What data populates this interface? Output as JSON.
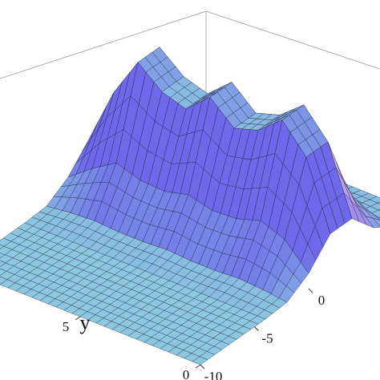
{
  "chart_data": {
    "type": "surface3d",
    "ylabel": "y",
    "x": [
      -10,
      -8,
      -6,
      -4,
      -2,
      0,
      2,
      4,
      6,
      8,
      10
    ],
    "y": [
      0,
      1,
      2,
      3,
      4,
      5,
      6,
      7,
      8,
      9,
      10
    ],
    "z": [
      [
        0,
        0,
        0,
        0,
        0.01,
        0.1,
        0.26,
        0.26,
        0.1,
        0.01,
        0
      ],
      [
        0,
        0,
        0,
        0,
        0.03,
        0.26,
        0.7,
        0.7,
        0.26,
        0.03,
        0
      ],
      [
        0,
        0,
        0,
        0,
        0.04,
        0.32,
        0.88,
        0.88,
        0.32,
        0.04,
        0
      ],
      [
        0,
        0,
        0,
        0,
        0.03,
        0.27,
        0.75,
        0.75,
        0.27,
        0.03,
        0
      ],
      [
        0,
        0,
        0,
        0,
        0.03,
        0.26,
        0.7,
        0.7,
        0.26,
        0.03,
        0
      ],
      [
        0,
        0,
        0,
        0,
        0.04,
        0.3,
        0.84,
        0.84,
        0.3,
        0.04,
        0
      ],
      [
        0,
        0,
        0,
        0,
        0.03,
        0.26,
        0.7,
        0.7,
        0.26,
        0.03,
        0
      ],
      [
        0,
        0,
        0,
        0,
        0.03,
        0.27,
        0.75,
        0.75,
        0.27,
        0.03,
        0
      ],
      [
        0,
        0,
        0,
        0,
        0.04,
        0.32,
        0.88,
        0.88,
        0.32,
        0.04,
        0
      ],
      [
        0,
        0,
        0,
        0,
        0.03,
        0.22,
        0.62,
        0.62,
        0.22,
        0.03,
        0
      ],
      [
        0,
        0,
        0,
        0,
        0.01,
        0.1,
        0.26,
        0.26,
        0.1,
        0.01,
        0
      ]
    ],
    "xlim": [
      -10,
      10
    ],
    "ylim": [
      0,
      10
    ],
    "zlim": [
      0,
      1
    ],
    "xticks": [
      -10,
      -5,
      0
    ],
    "yticks": [
      0,
      5
    ]
  }
}
